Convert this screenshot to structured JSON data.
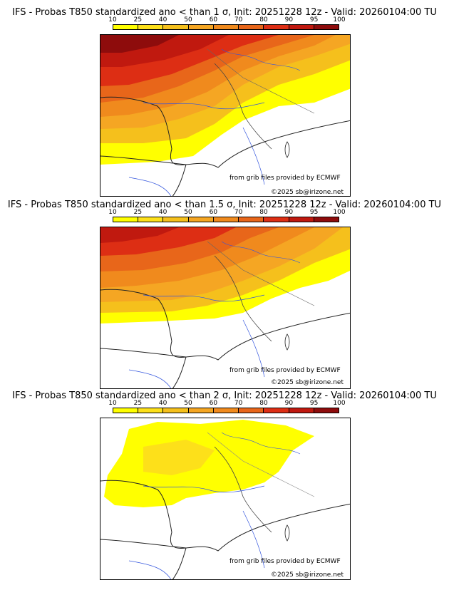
{
  "colorbar": {
    "ticks": [
      "10",
      "25",
      "40",
      "50",
      "60",
      "70",
      "80",
      "90",
      "95",
      "100"
    ],
    "colors": [
      "#ffff00",
      "#fde01a",
      "#f5c01c",
      "#f5a623",
      "#f08a1d",
      "#e8661a",
      "#dd2e14",
      "#c0190f",
      "#8e0c0c"
    ]
  },
  "panels": [
    {
      "title": "IFS - Probas T850  standardized ano < than 1 σ, Init: 20251228 12z - Valid: 20260104:00 TU",
      "credit_source": "from grib files provided by ECMWF",
      "credit_site": "©2025 sb@irizone.net"
    },
    {
      "title": "IFS - Probas T850  standardized ano < than 1.5 σ, Init: 20251228 12z - Valid: 20260104:00 TU",
      "credit_source": "from grib files provided by ECMWF",
      "credit_site": "©2025 sb@irizone.net"
    },
    {
      "title": "IFS - Probas T850  standardized ano < than 2 σ, Init: 20251228 12z - Valid: 20260104:00 TU",
      "credit_source": "from grib files provided by ECMWF",
      "credit_site": "©2025 sb@irizone.net"
    }
  ]
}
